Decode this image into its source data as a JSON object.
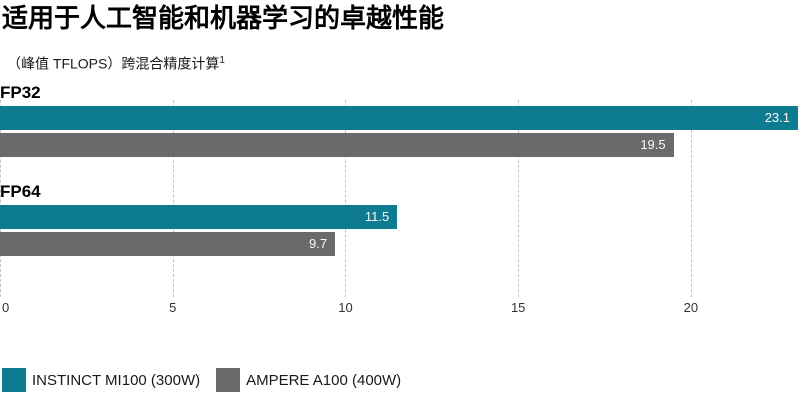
{
  "chart_data": {
    "type": "bar",
    "orientation": "horizontal",
    "title": "适用于人工智能和机器学习的卓越性能",
    "subtitle": "（峰值 TFLOPS）跨混合精度计算",
    "footnote_marker": "1",
    "categories": [
      "FP32",
      "FP64"
    ],
    "series": [
      {
        "name": "INSTINCT MI100 (300W)",
        "color": "#0e7c90",
        "values": [
          23.1,
          11.5
        ]
      },
      {
        "name": "AMPERE A100 (400W)",
        "color": "#6a6a6a",
        "values": [
          19.5,
          9.7
        ]
      }
    ],
    "xlim": [
      0,
      23.1
    ],
    "xticks": [
      0,
      5,
      10,
      15,
      20
    ],
    "grid": "dashed-vertical",
    "legend_position": "bottom-left",
    "value_label_color": "#fbfbf3",
    "gridline_color": "#c4c4c4"
  }
}
